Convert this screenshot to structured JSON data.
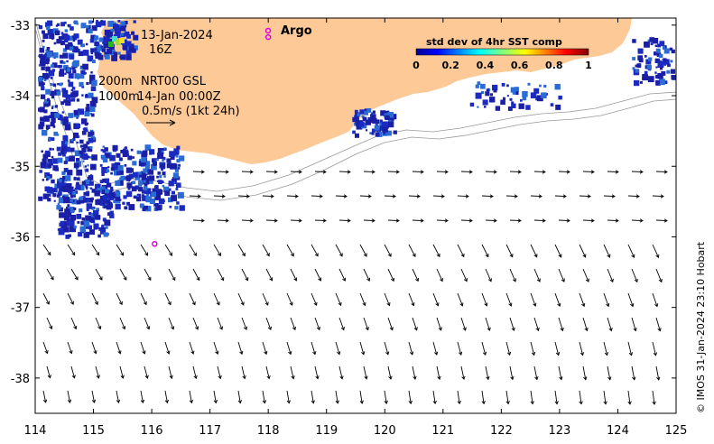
{
  "map": {
    "annotations": {
      "date": "13-Jan-2024",
      "hour": "16Z",
      "depth_line1": "200m",
      "product": "NRT00 GSL",
      "depth_line2": "1000m",
      "analysis_time": "14-Jan 00:00Z",
      "vector_scale": "0.5m/s (1kt 24h)",
      "argo_label": "Argo"
    },
    "colorbar": {
      "title": "std dev of 4hr SST comp",
      "ticks": [
        "0",
        "0.2",
        "0.4",
        "0.6",
        "0.8",
        "1"
      ]
    },
    "credit": "© IMOS 31-Jan-2024 23:10 Hobart",
    "x_ticks": [
      "114",
      "115",
      "116",
      "117",
      "118",
      "119",
      "120",
      "121",
      "122",
      "123",
      "124",
      "125"
    ],
    "y_ticks": [
      "-33",
      "-34",
      "-35",
      "-36",
      "-37",
      "-38"
    ],
    "colors": {
      "land": "#FCC997",
      "argo_marker": "#E000E0",
      "sst_dark": "#1A1FA6",
      "sst_mid": "#2A6CD4"
    },
    "argo_floats": [
      {
        "lon": 118.0,
        "lat": -33.17
      },
      {
        "lon": 116.05,
        "lat": -36.1
      }
    ]
  }
}
